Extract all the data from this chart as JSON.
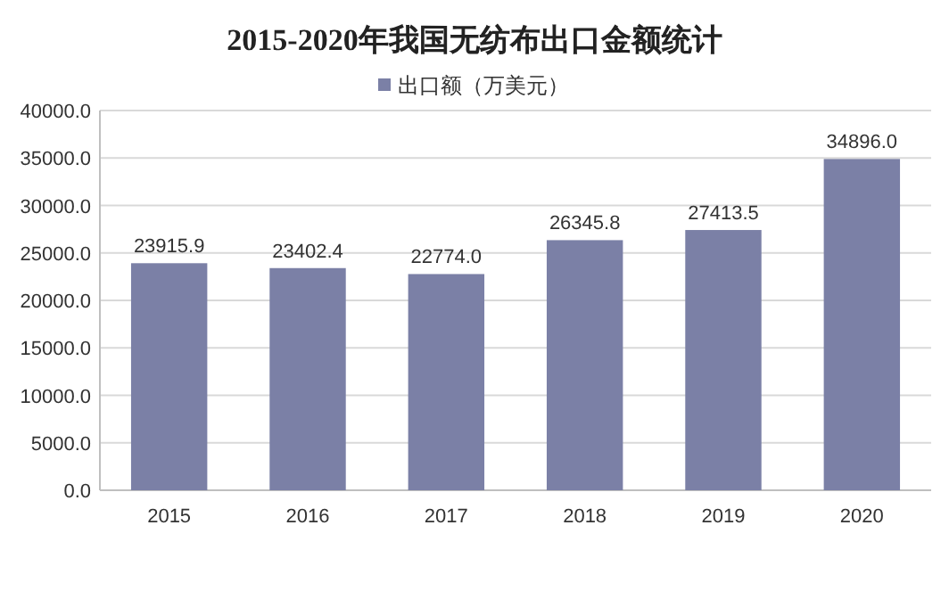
{
  "chart_data": {
    "type": "bar",
    "title": "2015-2020年我国无纺布出口金额统计",
    "categories": [
      "2015",
      "2016",
      "2017",
      "2018",
      "2019",
      "2020"
    ],
    "series": [
      {
        "name": "出口额（万美元）",
        "color": "#7b80a6",
        "values": [
          23915.9,
          23402.4,
          22774.0,
          26345.8,
          27413.5,
          34896.0
        ],
        "value_labels": [
          "23915.9",
          "23402.4",
          "22774.0",
          "26345.8",
          "27413.5",
          "34896.0"
        ]
      }
    ],
    "ylim": [
      0,
      40000
    ],
    "yticks": [
      {
        "value": 0,
        "label": "0.0"
      },
      {
        "value": 5000,
        "label": "5000.0"
      },
      {
        "value": 10000,
        "label": "10000.0"
      },
      {
        "value": 15000,
        "label": "15000.0"
      },
      {
        "value": 20000,
        "label": "20000.0"
      },
      {
        "value": 25000,
        "label": "25000.0"
      },
      {
        "value": 30000,
        "label": "30000.0"
      },
      {
        "value": 35000,
        "label": "35000.0"
      },
      {
        "value": 40000,
        "label": "40000.0"
      }
    ],
    "grid": "y",
    "legend": "top"
  }
}
